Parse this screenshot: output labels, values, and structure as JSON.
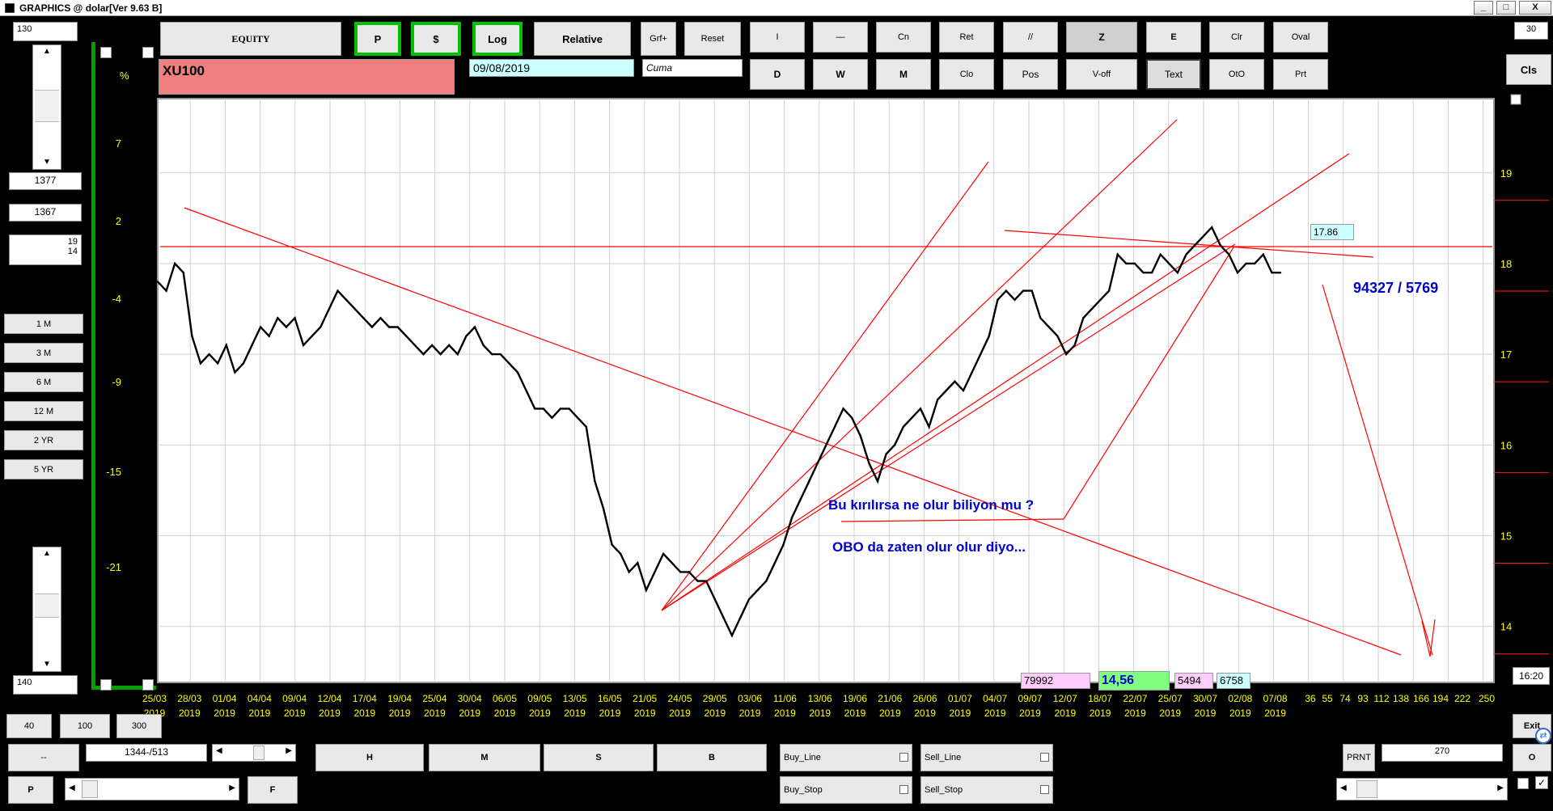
{
  "window": {
    "title": "GRAPHICS  @ dolar[Ver 9.63 B]",
    "controls": [
      "_",
      "□",
      "X"
    ]
  },
  "toolbar": {
    "equity": "EQUITY",
    "p": "P",
    "dollar": "$",
    "log": "Log",
    "relative": "Relative",
    "grf": "Grf+",
    "reset": "Reset",
    "row1": [
      "I",
      "—",
      "Cn",
      "Ret",
      "//",
      "Z",
      "E",
      "Clr",
      "Oval"
    ],
    "row2": [
      "D",
      "W",
      "M",
      "Clo",
      "Pos",
      "V-off",
      "Text",
      "OtO",
      "Prt"
    ],
    "right_field": "30",
    "cls": "Cls"
  },
  "symbol": {
    "name": "XU100",
    "date": "09/08/2019",
    "day": "Cuma"
  },
  "left": {
    "top_value": "130",
    "box1": "1377",
    "box2": "1367",
    "box3_a": "19",
    "box3_b": "14",
    "periods": [
      "1 M",
      "3 M",
      "6 M",
      "12 M",
      "2 YR",
      "5 YR"
    ],
    "bottom_value": "140",
    "row_buttons": [
      "40",
      "100",
      "300"
    ],
    "dash": "--",
    "p": "P"
  },
  "bottom": {
    "coords": "1344-/513",
    "hmsb": [
      "H",
      "M",
      "S",
      "B"
    ],
    "f": "F",
    "buy_line": "Buy_Line",
    "buy_stop": "Buy_Stop",
    "sell_line": "Sell_Line",
    "sell_stop": "Sell_Stop",
    "prnt": "PRNT",
    "prnt_value": "270",
    "exit": "Exit",
    "o": "O",
    "time": "16:20"
  },
  "readouts": {
    "r1": "79992",
    "r2": "14,56",
    "r3": "5494",
    "r4": "6758",
    "last_price": "17.86"
  },
  "chart_data": {
    "type": "line",
    "title": "XU100",
    "y_left_ticks": [
      "%",
      "7",
      "2",
      "-4",
      "-9",
      "-15",
      "-21"
    ],
    "y_right_ticks": [
      "19",
      "18",
      "17",
      "16",
      "15",
      "14"
    ],
    "x_labels": [
      [
        "25/03",
        "2019"
      ],
      [
        "28/03",
        "2019"
      ],
      [
        "01/04",
        "2019"
      ],
      [
        "04/04",
        "2019"
      ],
      [
        "09/04",
        "2019"
      ],
      [
        "12/04",
        "2019"
      ],
      [
        "17/04",
        "2019"
      ],
      [
        "19/04",
        "2019"
      ],
      [
        "25/04",
        "2019"
      ],
      [
        "30/04",
        "2019"
      ],
      [
        "06/05",
        "2019"
      ],
      [
        "09/05",
        "2019"
      ],
      [
        "13/05",
        "2019"
      ],
      [
        "16/05",
        "2019"
      ],
      [
        "21/05",
        "2019"
      ],
      [
        "24/05",
        "2019"
      ],
      [
        "29/05",
        "2019"
      ],
      [
        "03/06",
        "2019"
      ],
      [
        "11/06",
        "2019"
      ],
      [
        "13/06",
        "2019"
      ],
      [
        "19/06",
        "2019"
      ],
      [
        "21/06",
        "2019"
      ],
      [
        "26/06",
        "2019"
      ],
      [
        "01/07",
        "2019"
      ],
      [
        "04/07",
        "2019"
      ],
      [
        "09/07",
        "2019"
      ],
      [
        "12/07",
        "2019"
      ],
      [
        "18/07",
        "2019"
      ],
      [
        "22/07",
        "2019"
      ],
      [
        "25/07",
        "2019"
      ],
      [
        "30/07",
        "2019"
      ],
      [
        "02/08",
        "2019"
      ],
      [
        "07/08",
        "2019"
      ]
    ],
    "x_extra_labels": [
      "36",
      "55",
      "74",
      "93",
      "112",
      "138",
      "166",
      "194",
      "222",
      "250"
    ],
    "ylim": [
      13.4,
      19.8
    ],
    "series": [
      {
        "values": [
          17.8,
          17.7,
          18.0,
          17.9,
          17.2,
          16.9,
          17.0,
          16.9,
          17.1,
          16.8,
          16.9,
          17.1,
          17.3,
          17.2,
          17.4,
          17.3,
          17.4,
          17.1,
          17.2,
          17.3,
          17.5,
          17.7,
          17.6,
          17.5,
          17.4,
          17.3,
          17.4,
          17.3,
          17.3,
          17.2,
          17.1,
          17.0,
          17.1,
          17.0,
          17.1,
          17.0,
          17.2,
          17.3,
          17.1,
          17.0,
          17.0,
          16.9,
          16.8,
          16.6,
          16.4,
          16.4,
          16.3,
          16.4,
          16.4,
          16.3,
          16.2,
          15.6,
          15.3,
          14.9,
          14.8,
          14.6,
          14.7,
          14.4,
          14.6,
          14.8,
          14.7,
          14.6,
          14.6,
          14.5,
          14.5,
          14.3,
          14.1,
          13.9,
          14.1,
          14.3,
          14.4,
          14.5,
          14.7,
          14.9,
          15.2,
          15.4,
          15.6,
          15.8,
          16.0,
          16.2,
          16.4,
          16.3,
          16.1,
          15.8,
          15.6,
          15.9,
          16.0,
          16.2,
          16.3,
          16.4,
          16.2,
          16.5,
          16.6,
          16.7,
          16.6,
          16.8,
          17.0,
          17.2,
          17.6,
          17.7,
          17.6,
          17.7,
          17.7,
          17.4,
          17.3,
          17.2,
          17.0,
          17.1,
          17.4,
          17.5,
          17.6,
          17.7,
          18.1,
          18.0,
          18.0,
          17.9,
          17.9,
          18.1,
          18.0,
          17.9,
          18.1,
          18.2,
          18.3,
          18.4,
          18.2,
          18.1,
          17.9,
          18.0,
          18.0,
          18.1,
          17.9,
          17.9
        ],
        "color": "#000000"
      }
    ],
    "annotations": [
      "Bu kırılırsa ne olur biliyon mu ?",
      "OBO da zaten olur olur diyo...",
      "94327 / 5769"
    ],
    "grid": true,
    "line_color": "#ff0000",
    "annotation_color": "#0000cc"
  }
}
